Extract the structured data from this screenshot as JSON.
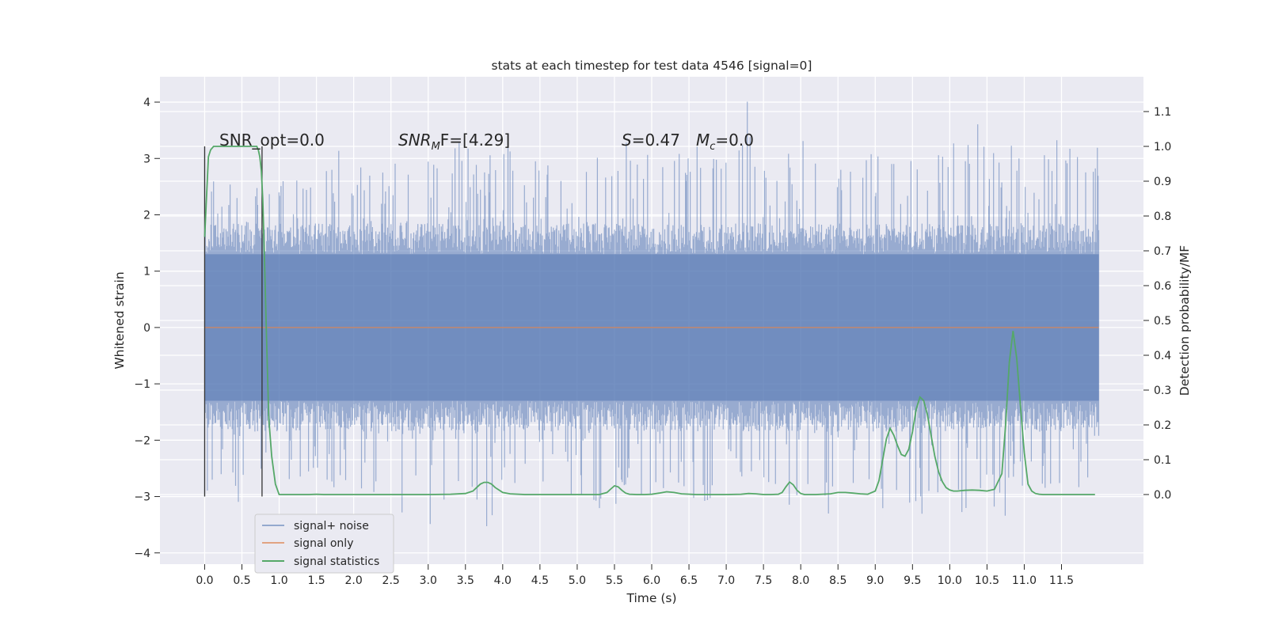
{
  "chart_data": {
    "type": "line",
    "title": "stats at each timestep for test data 4546 [signal=0]",
    "xlabel": "Time (s)",
    "ylabel": "Whitened strain",
    "ylabel_right": "Detection probability/MF",
    "xlim": [
      -0.6,
      12.6
    ],
    "ylim": [
      -4.2,
      4.45
    ],
    "ylim_right": [
      -0.2,
      1.2
    ],
    "x_ticks": [
      "0.0",
      "0.5",
      "1.0",
      "1.5",
      "2.0",
      "2.5",
      "3.0",
      "3.5",
      "4.0",
      "4.5",
      "5.0",
      "5.5",
      "6.0",
      "6.5",
      "7.0",
      "7.5",
      "8.0",
      "8.5",
      "9.0",
      "9.5",
      "10.0",
      "10.5",
      "11.0",
      "11.5"
    ],
    "y_ticks": [
      4,
      3,
      2,
      1,
      0,
      -1,
      -2,
      -3,
      -4
    ],
    "y_right_ticks": [
      "1.1",
      "1.0",
      "0.9",
      "0.8",
      "0.7",
      "0.6",
      "0.5",
      "0.4",
      "0.3",
      "0.2",
      "0.1",
      "0.0"
    ],
    "grid": true,
    "annotations": {
      "snr_opt": "SNR_opt=0.0",
      "snr_mf_label": "SNR",
      "snr_mf_sub": "M",
      "snr_mf_tail": "F=[4.29]",
      "s_label": "S",
      "s_value": "=0.47",
      "mc_label": "M",
      "mc_sub": "c",
      "mc_value": "=0.0"
    },
    "vlines": [
      0.0,
      0.77
    ],
    "legend": {
      "placement": "lower-left",
      "entries": [
        "signal+ noise",
        "signal only",
        "signal statistics"
      ]
    },
    "series": [
      {
        "name": "signal+ noise",
        "color": "#4c72b0",
        "x_range": [
          0.0,
          12.0
        ],
        "envelope_top": [
          3.2,
          2.4,
          2.6,
          2.4,
          2.2,
          2.5,
          2.8,
          2.3,
          2.6,
          3.1,
          2.5,
          2.9,
          2.7,
          2.8,
          2.6,
          2.9,
          2.8,
          3.4,
          2.8,
          2.7,
          3.2,
          2.7,
          3.0,
          2.6,
          2.6,
          2.8,
          2.6,
          2.7,
          3.0,
          2.8,
          2.8,
          3.0,
          3.0,
          3.4,
          2.7,
          2.8,
          4.1,
          2.7,
          2.9,
          2.8,
          3.0,
          2.7,
          2.8,
          3.1,
          2.9,
          2.8,
          3.1,
          2.8,
          3.1,
          3.0,
          3.2,
          3.3,
          3.1,
          3.0,
          3.0,
          3.1,
          3.0,
          3.2,
          2.9,
          2.8
        ],
        "envelope_bottom": [
          -3.0,
          -2.4,
          -2.6,
          -3.3,
          -2.2,
          -2.4,
          -2.9,
          -2.4,
          -2.6,
          -2.8,
          -2.5,
          -3.0,
          -2.5,
          -3.3,
          -2.6,
          -3.6,
          -2.8,
          -2.7,
          -3.1,
          -3.8,
          -2.9,
          -2.6,
          -2.7,
          -2.8,
          -3.0,
          -2.8,
          -3.2,
          -3.3,
          -2.6,
          -2.9,
          -2.7,
          -2.5,
          -3.0,
          -2.7,
          -2.9,
          -2.6,
          -2.5,
          -2.7,
          -2.9,
          -3.0,
          -2.7,
          -3.0,
          -2.6,
          -2.8,
          -2.6,
          -3.0,
          -2.9,
          -3.3,
          -3.0,
          -2.8,
          -3.3,
          -2.9,
          -3.2,
          -3.0,
          -2.8,
          -3.1,
          -2.7,
          -2.9,
          -2.8,
          -2.6
        ],
        "core_amplitude": 1.3
      },
      {
        "name": "signal only",
        "color": "#dd8452",
        "x": [
          0.0,
          12.0
        ],
        "y": [
          0.0,
          0.0
        ]
      },
      {
        "name": "signal statistics",
        "color": "#55a868",
        "axis": "right",
        "x": [
          0.0,
          0.02,
          0.05,
          0.08,
          0.12,
          0.16,
          0.2,
          0.25,
          0.3,
          0.35,
          0.4,
          0.45,
          0.5,
          0.55,
          0.6,
          0.65,
          0.7,
          0.72,
          0.74,
          0.76,
          0.78,
          0.8,
          0.83,
          0.86,
          0.9,
          0.95,
          1.0,
          1.1,
          1.2,
          1.4,
          1.5,
          1.6,
          2.0,
          2.5,
          3.0,
          3.3,
          3.5,
          3.6,
          3.65,
          3.7,
          3.75,
          3.8,
          3.85,
          3.9,
          3.95,
          4.0,
          4.1,
          4.3,
          4.6,
          5.0,
          5.3,
          5.4,
          5.45,
          5.5,
          5.55,
          5.6,
          5.65,
          5.7,
          5.8,
          5.9,
          6.0,
          6.1,
          6.2,
          6.3,
          6.4,
          6.6,
          7.0,
          7.2,
          7.3,
          7.4,
          7.5,
          7.6,
          7.7,
          7.75,
          7.8,
          7.85,
          7.9,
          7.95,
          8.0,
          8.05,
          8.1,
          8.2,
          8.4,
          8.5,
          8.6,
          8.7,
          8.8,
          8.9,
          9.0,
          9.05,
          9.1,
          9.15,
          9.2,
          9.25,
          9.3,
          9.35,
          9.4,
          9.45,
          9.5,
          9.55,
          9.6,
          9.65,
          9.7,
          9.75,
          9.8,
          9.85,
          9.9,
          9.95,
          10.0,
          10.05,
          10.1,
          10.2,
          10.3,
          10.4,
          10.5,
          10.6,
          10.7,
          10.75,
          10.8,
          10.85,
          10.9,
          10.95,
          11.0,
          11.05,
          11.1,
          11.15,
          11.2,
          11.25,
          11.3,
          11.4,
          11.5,
          11.7,
          11.95
        ],
        "y": [
          0.74,
          0.83,
          0.97,
          0.99,
          1.0,
          1.0,
          1.0,
          1.0,
          1.0,
          1.0,
          1.0,
          1.0,
          1.0,
          1.0,
          1.0,
          1.0,
          1.0,
          0.99,
          0.97,
          0.93,
          0.85,
          0.7,
          0.45,
          0.22,
          0.11,
          0.03,
          0.0,
          0.0,
          0.0,
          0.0,
          0.001,
          0.0,
          0.0,
          0.0,
          0.0,
          0.001,
          0.003,
          0.01,
          0.02,
          0.03,
          0.035,
          0.035,
          0.03,
          0.02,
          0.013,
          0.006,
          0.002,
          0.0,
          0.0,
          0.0,
          0.0,
          0.006,
          0.016,
          0.025,
          0.022,
          0.012,
          0.004,
          0.001,
          0.0,
          0.0,
          0.001,
          0.004,
          0.008,
          0.006,
          0.002,
          0.0,
          0.0,
          0.001,
          0.003,
          0.002,
          0.0,
          0.0,
          0.001,
          0.006,
          0.022,
          0.036,
          0.028,
          0.012,
          0.003,
          0.0,
          0.0,
          0.0,
          0.002,
          0.006,
          0.006,
          0.004,
          0.002,
          0.001,
          0.01,
          0.04,
          0.1,
          0.16,
          0.19,
          0.17,
          0.14,
          0.115,
          0.11,
          0.13,
          0.18,
          0.245,
          0.28,
          0.27,
          0.23,
          0.17,
          0.11,
          0.065,
          0.037,
          0.02,
          0.013,
          0.01,
          0.01,
          0.012,
          0.013,
          0.012,
          0.01,
          0.015,
          0.06,
          0.2,
          0.38,
          0.47,
          0.39,
          0.25,
          0.12,
          0.03,
          0.01,
          0.003,
          0.001,
          0.0,
          0.0,
          0.0,
          0.0,
          0.0,
          0.0
        ]
      }
    ]
  }
}
